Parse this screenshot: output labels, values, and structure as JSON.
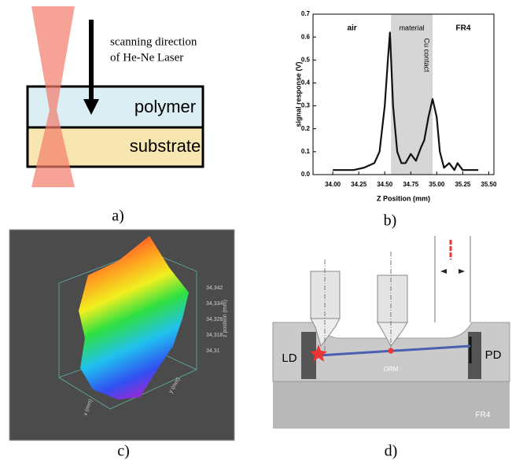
{
  "panels": {
    "a": {
      "label": "a)",
      "caption_line1": "scanning direction",
      "caption_line2": "of He-Ne Laser",
      "layer_top": "polymer",
      "layer_bottom": "substrate"
    },
    "b": {
      "label": "b)"
    },
    "c": {
      "label": "c)",
      "zticks": [
        "34,342",
        "34,334",
        "34,326",
        "34,318",
        "34,31"
      ],
      "zlabel": "z position (mm)",
      "ylabel": "y (mm)",
      "xlabel": "x (mm)"
    },
    "d": {
      "label": "d)",
      "left": "LD",
      "right": "PD",
      "middle": "ORM",
      "base": "FR4"
    }
  },
  "chart_data": {
    "type": "line",
    "xlabel": "Z Position (mm)",
    "ylabel": "signal response (V)",
    "regions": [
      "air",
      "material",
      "FR4"
    ],
    "annotation": "Cu contact",
    "shaded_xrange": [
      34.56,
      34.96
    ],
    "xlim": [
      33.81,
      35.55
    ],
    "xticks": [
      {
        "value": 34,
        "label": "34.00"
      },
      34.25,
      {
        "value": 34.5,
        "label": "34.50"
      },
      34.75,
      {
        "value": 35,
        "label": "35.00"
      },
      35.25,
      {
        "value": 35.5,
        "label": "35.50"
      }
    ],
    "ylim": [
      0,
      0.7
    ],
    "yticks": [
      {
        "value": 0,
        "label": "0.0"
      },
      0.1,
      0.2,
      0.3,
      0.4,
      0.5,
      0.6,
      0.7
    ],
    "x": [
      34.0,
      34.1,
      34.2,
      34.3,
      34.4,
      34.45,
      34.5,
      34.53,
      34.55,
      34.58,
      34.62,
      34.66,
      34.7,
      34.75,
      34.8,
      34.85,
      34.88,
      34.92,
      34.96,
      35.0,
      35.03,
      35.07,
      35.12,
      35.17,
      35.2,
      35.25,
      35.4
    ],
    "series": [
      {
        "color": "#111111",
        "values": [
          0.02,
          0.02,
          0.02,
          0.03,
          0.05,
          0.1,
          0.3,
          0.5,
          0.62,
          0.3,
          0.1,
          0.05,
          0.05,
          0.09,
          0.06,
          0.12,
          0.15,
          0.25,
          0.33,
          0.25,
          0.1,
          0.03,
          0.05,
          0.02,
          0.05,
          0.02,
          0.02
        ]
      }
    ]
  }
}
